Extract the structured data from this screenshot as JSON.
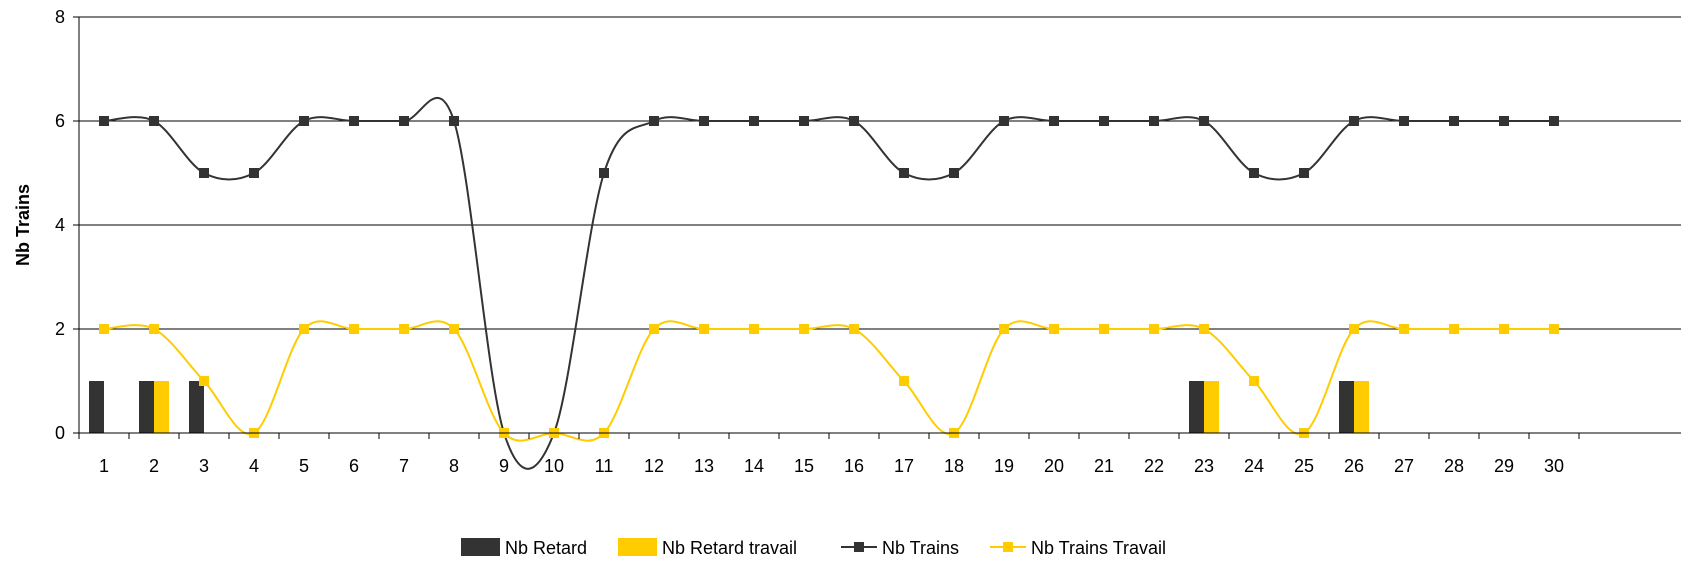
{
  "chart_data": {
    "type": "bar",
    "title": "",
    "xlabel": "",
    "ylabel": "Nb Trains",
    "ylim": [
      0,
      8
    ],
    "yticks": [
      0,
      2,
      4,
      6,
      8
    ],
    "grid": true,
    "legend_position": "bottom",
    "categories": [
      "1",
      "2",
      "3",
      "4",
      "5",
      "6",
      "7",
      "8",
      "9",
      "10",
      "11",
      "12",
      "13",
      "14",
      "15",
      "16",
      "17",
      "18",
      "19",
      "20",
      "21",
      "22",
      "23",
      "24",
      "25",
      "26",
      "27",
      "28",
      "29",
      "30"
    ],
    "series": [
      {
        "name": "Nb Retard",
        "kind": "bar",
        "color": "#333333",
        "values": [
          1,
          1,
          1,
          0,
          0,
          0,
          0,
          0,
          0,
          0,
          0,
          0,
          0,
          0,
          0,
          0,
          0,
          0,
          0,
          0,
          0,
          0,
          1,
          0,
          0,
          1,
          0,
          0,
          0,
          0
        ]
      },
      {
        "name": "Nb Retard travail",
        "kind": "bar",
        "color": "#FFCC00",
        "values": [
          0,
          1,
          0,
          0,
          0,
          0,
          0,
          0,
          0,
          0,
          0,
          0,
          0,
          0,
          0,
          0,
          0,
          0,
          0,
          0,
          0,
          0,
          1,
          0,
          0,
          1,
          0,
          0,
          0,
          0
        ]
      },
      {
        "name": "Nb Trains",
        "kind": "line",
        "color": "#333333",
        "values": [
          6,
          6,
          5,
          5,
          6,
          6,
          6,
          6,
          0,
          0,
          5,
          6,
          6,
          6,
          6,
          6,
          5,
          5,
          6,
          6,
          6,
          6,
          6,
          5,
          5,
          6,
          6,
          6,
          6,
          6
        ]
      },
      {
        "name": "Nb Trains Travail",
        "kind": "line",
        "color": "#FFCC00",
        "values": [
          2,
          2,
          1,
          0,
          2,
          2,
          2,
          2,
          0,
          0,
          0,
          2,
          2,
          2,
          2,
          2,
          1,
          0,
          2,
          2,
          2,
          2,
          2,
          1,
          0,
          2,
          2,
          2,
          2,
          2
        ]
      }
    ]
  }
}
